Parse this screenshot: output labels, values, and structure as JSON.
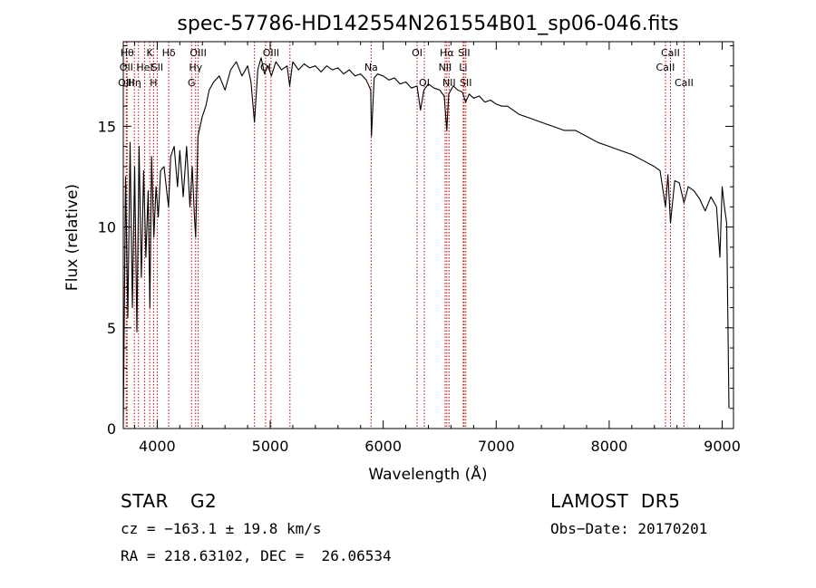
{
  "chart_data": {
    "type": "line",
    "title": "spec-57786-HD142554N261554B01_sp06-046.fits",
    "xlabel": "Wavelength (Å)",
    "ylabel": "Flux (relative)",
    "xlim": [
      3700,
      9100
    ],
    "ylim": [
      0,
      19.2
    ],
    "xticks": [
      4000,
      5000,
      6000,
      7000,
      8000,
      9000
    ],
    "yticks": [
      0,
      5,
      10,
      15
    ],
    "grid": false,
    "series": [
      {
        "color": "#000000",
        "x": [
          3700,
          3720,
          3740,
          3760,
          3780,
          3800,
          3820,
          3840,
          3860,
          3880,
          3900,
          3920,
          3935,
          3950,
          3970,
          3990,
          4010,
          4030,
          4060,
          4090,
          4100,
          4120,
          4150,
          4180,
          4200,
          4230,
          4260,
          4290,
          4310,
          4330,
          4340,
          4360,
          4380,
          4400,
          4430,
          4460,
          4500,
          4550,
          4600,
          4650,
          4700,
          4750,
          4800,
          4830,
          4861,
          4890,
          4920,
          4950,
          4980,
          5010,
          5050,
          5100,
          5150,
          5172,
          5200,
          5250,
          5300,
          5350,
          5400,
          5450,
          5500,
          5550,
          5600,
          5650,
          5700,
          5750,
          5800,
          5850,
          5890,
          5896,
          5920,
          5950,
          6000,
          6050,
          6100,
          6150,
          6200,
          6250,
          6300,
          6330,
          6360,
          6400,
          6450,
          6500,
          6540,
          6563,
          6580,
          6620,
          6660,
          6700,
          6730,
          6760,
          6800,
          6850,
          6900,
          6950,
          7000,
          7050,
          7100,
          7150,
          7200,
          7300,
          7400,
          7500,
          7600,
          7700,
          7800,
          7900,
          8000,
          8100,
          8200,
          8300,
          8400,
          8450,
          8498,
          8520,
          8542,
          8580,
          8620,
          8662,
          8700,
          8750,
          8800,
          8850,
          8900,
          8950,
          8980,
          9000,
          9020,
          9040,
          9060
        ],
        "y": [
          0.2,
          12.5,
          5.5,
          14.2,
          6.0,
          13.0,
          4.8,
          14.0,
          7.5,
          12.8,
          8.5,
          11.8,
          6.0,
          13.5,
          9.5,
          12.0,
          10.5,
          12.8,
          13.0,
          11.5,
          11.0,
          13.5,
          14.0,
          12.0,
          13.8,
          11.5,
          14.0,
          11.0,
          13.0,
          10.5,
          9.5,
          14.5,
          15.0,
          15.5,
          16.0,
          16.8,
          17.2,
          17.5,
          16.8,
          17.8,
          18.2,
          17.5,
          18.0,
          17.2,
          15.2,
          17.8,
          18.4,
          17.6,
          18.0,
          17.5,
          18.2,
          17.8,
          18.0,
          17.0,
          18.2,
          17.8,
          18.1,
          17.9,
          18.0,
          17.7,
          18.0,
          17.8,
          17.9,
          17.6,
          17.8,
          17.5,
          17.6,
          17.3,
          16.8,
          14.5,
          17.4,
          17.6,
          17.5,
          17.3,
          17.4,
          17.1,
          17.2,
          16.9,
          17.0,
          15.8,
          16.8,
          17.1,
          16.9,
          16.8,
          16.5,
          14.8,
          16.6,
          17.0,
          16.8,
          16.7,
          16.2,
          16.6,
          16.4,
          16.5,
          16.2,
          16.3,
          16.1,
          16.0,
          16.0,
          15.8,
          15.6,
          15.4,
          15.2,
          15.0,
          14.8,
          14.8,
          14.5,
          14.2,
          14.0,
          13.8,
          13.6,
          13.3,
          13.0,
          12.8,
          11.0,
          12.6,
          10.2,
          12.3,
          12.2,
          11.2,
          12.0,
          11.8,
          11.4,
          10.8,
          11.5,
          11.0,
          8.5,
          12.0,
          11.0,
          10.2,
          1.0
        ]
      }
    ],
    "lines": [
      {
        "x": 3734,
        "rows": [
          1
        ],
        "label": "Hθ"
      },
      {
        "x": 3727,
        "rows": [
          2
        ],
        "label": "OII"
      },
      {
        "x": 3727,
        "rows": [
          3
        ],
        "label": "OIII"
      },
      {
        "x": 3798,
        "rows": [
          3
        ],
        "label": "Hη"
      },
      {
        "x": 3835,
        "rows": [],
        "label": ""
      },
      {
        "x": 3889,
        "rows": [
          2
        ],
        "label": "HeI"
      },
      {
        "x": 3934,
        "rows": [
          1
        ],
        "label": "K"
      },
      {
        "x": 3968,
        "rows": [
          3
        ],
        "label": "H"
      },
      {
        "x": 4000,
        "rows": [
          2
        ],
        "label": "SII"
      },
      {
        "x": 4102,
        "rows": [
          1
        ],
        "label": "Hδ"
      },
      {
        "x": 4304,
        "rows": [
          3
        ],
        "label": "G"
      },
      {
        "x": 4340,
        "rows": [
          2
        ],
        "label": "Hγ"
      },
      {
        "x": 4363,
        "rows": [
          1
        ],
        "label": "OIII"
      },
      {
        "x": 4861,
        "rows": [],
        "label": ""
      },
      {
        "x": 4959,
        "rows": [
          2
        ],
        "label": "OI"
      },
      {
        "x": 5007,
        "rows": [
          1
        ],
        "label": "OIII"
      },
      {
        "x": 5175,
        "rows": [],
        "label": ""
      },
      {
        "x": 5893,
        "rows": [
          2
        ],
        "label": "Na"
      },
      {
        "x": 6300,
        "rows": [
          1
        ],
        "label": "OI"
      },
      {
        "x": 6364,
        "rows": [
          3
        ],
        "label": "OI"
      },
      {
        "x": 6548,
        "rows": [
          2
        ],
        "label": "NII"
      },
      {
        "x": 6563,
        "rows": [
          1
        ],
        "label": "Hα"
      },
      {
        "x": 6583,
        "rows": [
          3
        ],
        "label": "NII"
      },
      {
        "x": 6708,
        "rows": [
          2
        ],
        "label": "Li"
      },
      {
        "x": 6716,
        "rows": [
          1
        ],
        "label": "SII"
      },
      {
        "x": 6731,
        "rows": [
          3
        ],
        "label": "SII"
      },
      {
        "x": 8498,
        "rows": [
          2
        ],
        "label": "CaII"
      },
      {
        "x": 8542,
        "rows": [
          1
        ],
        "label": "CaII"
      },
      {
        "x": 8662,
        "rows": [
          3
        ],
        "label": "CaII"
      }
    ]
  },
  "info": {
    "object_type": "STAR",
    "subclass": "G2",
    "survey": "LAMOST  DR5",
    "cz": "cz = −163.1 ± 19.8 km/s",
    "obs_date": "Obs−Date: 20170201",
    "coords": "RA = 218.63102, DEC =  26.06534"
  }
}
